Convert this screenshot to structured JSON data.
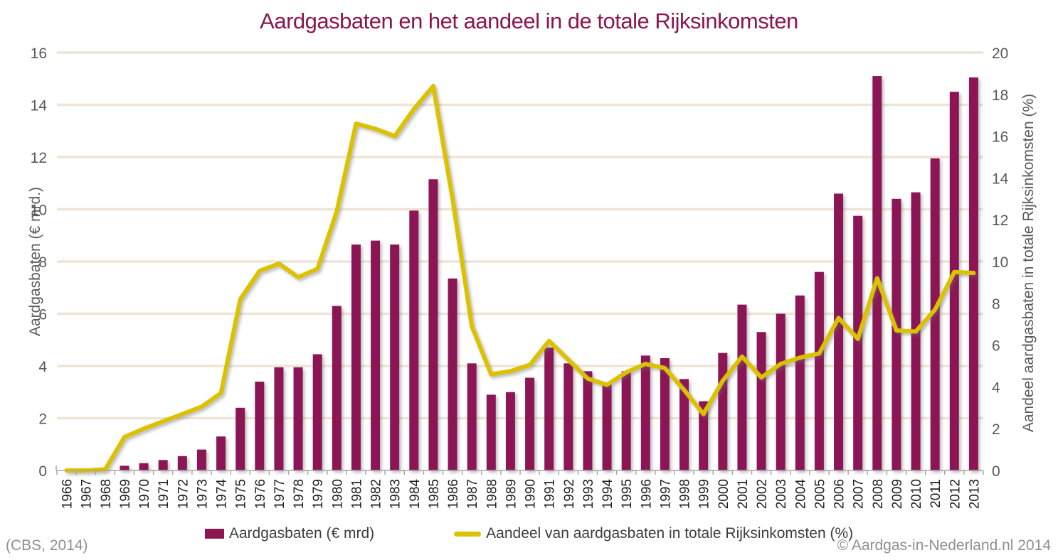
{
  "title": "Aardgasbaten en het aandeel in de totale Rijksinkomsten",
  "source_note": "(CBS, 2014)",
  "copyright": "© Aardgas-in-Nederland.nl  2014",
  "colors": {
    "title": "#8B164F",
    "bar": "#8C1654",
    "line": "#DCC104",
    "gridline": "#EDE5D6",
    "axis": "#A6A6A6",
    "y_tick_text": "#595959",
    "x_tick_text": "#1F1F1F",
    "footer_text": "#8F8F8F"
  },
  "chart_data": {
    "type": "bar+line combo",
    "title": "Aardgasbaten en het aandeel in de totale Rijksinkomsten",
    "grid": "horizontal gridlines on",
    "legend_position": "bottom center",
    "categories": [
      "1966",
      "1967",
      "1968",
      "1969",
      "1970",
      "1971",
      "1972",
      "1973",
      "1974",
      "1975",
      "1976",
      "1977",
      "1978",
      "1979",
      "1980",
      "1981",
      "1982",
      "1983",
      "1984",
      "1985",
      "1986",
      "1987",
      "1988",
      "1989",
      "1990",
      "1991",
      "1992",
      "1993",
      "1994",
      "1995",
      "1996",
      "1997",
      "1998",
      "1999",
      "2000",
      "2001",
      "2002",
      "2003",
      "2004",
      "2005",
      "2006",
      "2007",
      "2008",
      "2009",
      "2010",
      "2011",
      "2012",
      "2013"
    ],
    "left_axis": {
      "label": "Aardgasbaten (€ mrd.)",
      "min": 0,
      "max": 16,
      "tick_step": 2
    },
    "right_axis": {
      "label": "Aandeel aardgasbaten in totale Rijksinkomsten (%)",
      "min": 0,
      "max": 20,
      "tick_step": 2
    },
    "series": [
      {
        "name": "Aardgasbaten (€ mrd)",
        "type": "bar",
        "axis": "left",
        "color": "#8C1654",
        "values": [
          0,
          0,
          0.02,
          0.18,
          0.28,
          0.4,
          0.55,
          0.8,
          1.3,
          2.4,
          3.4,
          3.95,
          3.95,
          4.45,
          6.3,
          8.65,
          8.8,
          8.65,
          9.95,
          11.15,
          7.35,
          4.1,
          2.9,
          3.0,
          3.55,
          4.7,
          4.1,
          3.8,
          3.3,
          3.8,
          4.4,
          4.3,
          3.5,
          2.65,
          4.5,
          6.35,
          5.3,
          6.0,
          6.7,
          7.6,
          10.6,
          9.75,
          15.1,
          10.4,
          10.65,
          11.95,
          14.5,
          15.05
        ]
      },
      {
        "name": "Aandeel van aardgasbaten in totale Rijksinkomsten (%)",
        "type": "line",
        "axis": "right",
        "color": "#DCC104",
        "values": [
          0,
          0,
          0.05,
          1.6,
          2.0,
          2.35,
          2.7,
          3.05,
          3.7,
          8.2,
          9.55,
          9.9,
          9.25,
          9.65,
          12.4,
          16.6,
          16.35,
          16.0,
          17.3,
          18.4,
          13.0,
          6.9,
          4.6,
          4.75,
          5.05,
          6.2,
          5.3,
          4.4,
          4.1,
          4.7,
          5.1,
          4.9,
          3.85,
          2.7,
          4.3,
          5.45,
          4.45,
          5.1,
          5.4,
          5.6,
          7.3,
          6.3,
          9.2,
          6.7,
          6.65,
          7.7,
          9.5,
          9.45
        ]
      }
    ]
  }
}
